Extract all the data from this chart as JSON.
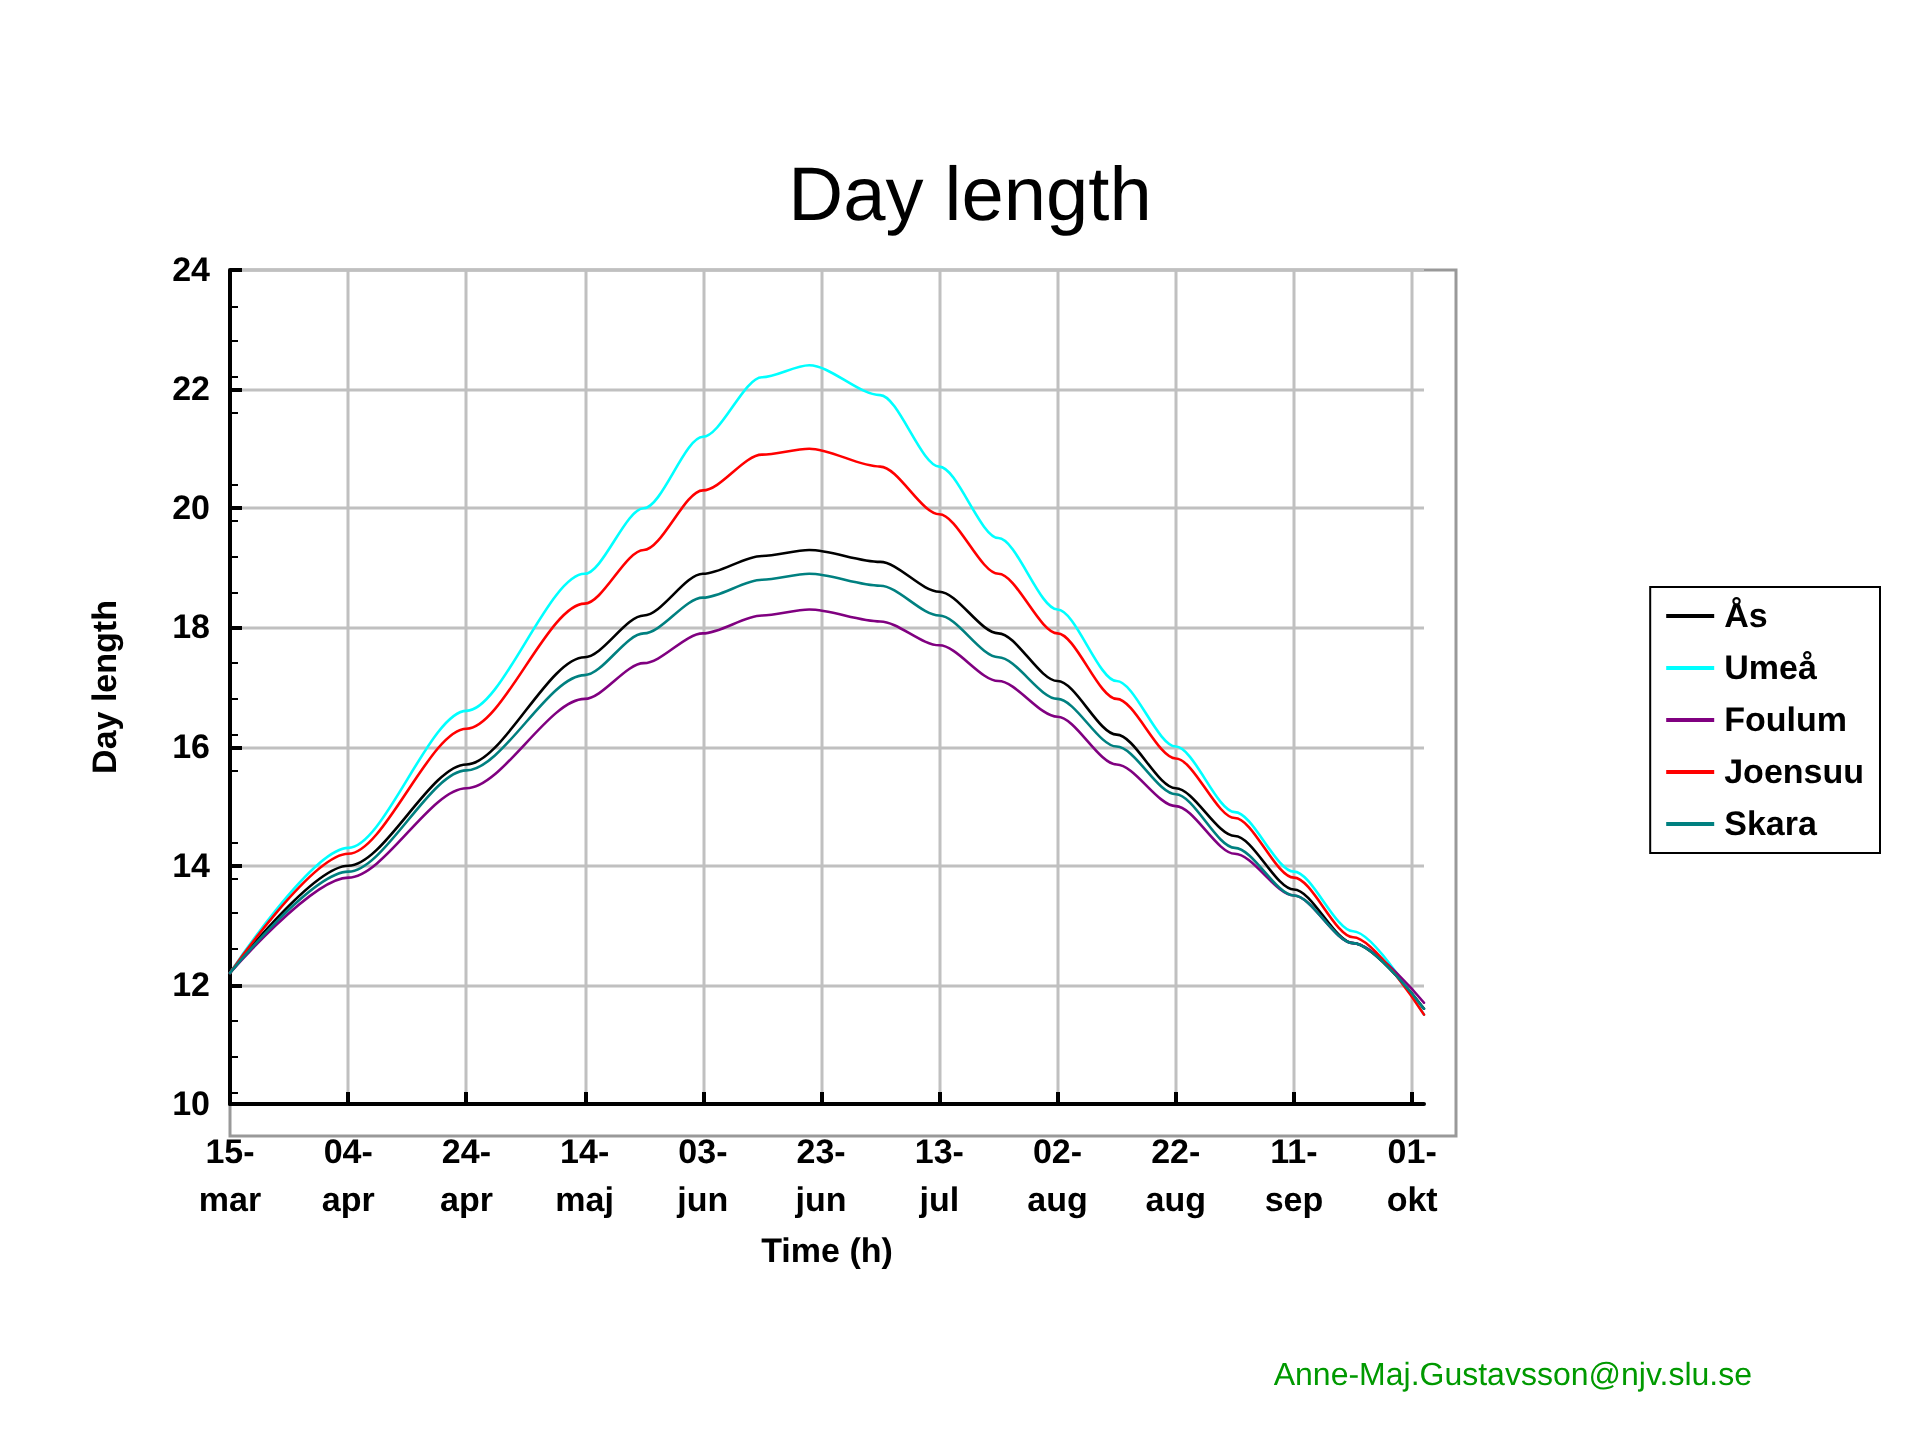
{
  "chart_data": {
    "type": "line",
    "title": "Day length",
    "xlabel": "Time (h)",
    "ylabel": "Day length",
    "x": [
      "--03-15",
      "--04-04",
      "--04-24",
      "--05-14",
      "--05-24",
      "--06-03",
      "--06-13",
      "--06-21",
      "--07-03",
      "--07-13",
      "--07-23",
      "--08-02",
      "--08-12",
      "--08-22",
      "--09-01",
      "--09-11",
      "--09-21",
      "--10-03"
    ],
    "series": [
      {
        "name": "Ås",
        "color": "#000000",
        "values": [
          12.2,
          14.0,
          15.7,
          17.5,
          18.2,
          18.9,
          19.2,
          19.3,
          19.1,
          18.6,
          17.9,
          17.1,
          16.2,
          15.3,
          14.5,
          13.6,
          12.7,
          11.6
        ]
      },
      {
        "name": "Umeå",
        "color": "#00ffff",
        "values": [
          12.2,
          14.3,
          16.6,
          18.9,
          20.0,
          21.2,
          22.2,
          22.4,
          21.9,
          20.7,
          19.5,
          18.3,
          17.1,
          16.0,
          14.9,
          13.9,
          12.9,
          11.5
        ]
      },
      {
        "name": "Foulum",
        "color": "#800080",
        "values": [
          12.2,
          13.8,
          15.3,
          16.8,
          17.4,
          17.9,
          18.2,
          18.3,
          18.1,
          17.7,
          17.1,
          16.5,
          15.7,
          15.0,
          14.2,
          13.5,
          12.7,
          11.7
        ]
      },
      {
        "name": "Joensuu",
        "color": "#ff0000",
        "values": [
          12.2,
          14.2,
          16.3,
          18.4,
          19.3,
          20.3,
          20.9,
          21.0,
          20.7,
          19.9,
          18.9,
          17.9,
          16.8,
          15.8,
          14.8,
          13.8,
          12.8,
          11.5
        ]
      },
      {
        "name": "Skara",
        "color": "#008080",
        "values": [
          12.2,
          13.9,
          15.6,
          17.2,
          17.9,
          18.5,
          18.8,
          18.9,
          18.7,
          18.2,
          17.5,
          16.8,
          16.0,
          15.2,
          14.3,
          13.5,
          12.7,
          11.6
        ]
      }
    ],
    "xlim": [
      "--03-15",
      "--10-03"
    ],
    "xticks": [
      {
        "value": "--03-15",
        "label": "15-\nmar"
      },
      {
        "value": "--04-04",
        "label": "04-\napr"
      },
      {
        "value": "--04-24",
        "label": "24-\napr"
      },
      {
        "value": "--05-14",
        "label": "14-\nmaj"
      },
      {
        "value": "--06-03",
        "label": "03-\njun"
      },
      {
        "value": "--06-23",
        "label": "23-\njun"
      },
      {
        "value": "--07-13",
        "label": "13-\njul"
      },
      {
        "value": "--08-02",
        "label": "02-\naug"
      },
      {
        "value": "--08-22",
        "label": "22-\naug"
      },
      {
        "value": "--09-11",
        "label": "11-\nsep"
      },
      {
        "value": "--10-01",
        "label": "01-\nokt"
      }
    ],
    "ylim": [
      10,
      24
    ],
    "yticks": [
      10,
      12,
      14,
      16,
      18,
      20,
      22,
      24
    ],
    "grid": true,
    "legend": "right",
    "marker": "none",
    "line_style": "solid",
    "annotations": [
      "Anne-Maj.Gustavsson@njv.slu.se"
    ]
  }
}
